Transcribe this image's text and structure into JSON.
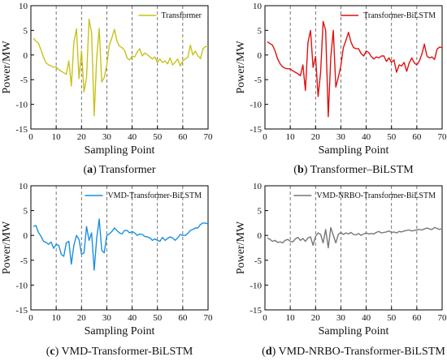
{
  "chart_data": [
    {
      "type": "line",
      "panel": "a",
      "caption_prefix": "(a)",
      "caption_text": "Transformer",
      "xlabel": "Sampling Point",
      "ylabel": "Power/MW",
      "xlim": [
        0,
        70
      ],
      "ylim": [
        -15,
        10
      ],
      "xticks": [
        0,
        10,
        20,
        30,
        40,
        50,
        60,
        70
      ],
      "yticks": [
        -15,
        -10,
        -5,
        0,
        5,
        10
      ],
      "grid": "vertical dashed at x=10..60",
      "legend_position": "top-right",
      "series": [
        {
          "name": "Transformer",
          "color": "#c9c21a",
          "x": [
            1,
            2,
            3,
            4,
            5,
            6,
            7,
            8,
            9,
            10,
            11,
            12,
            13,
            14,
            15,
            16,
            17,
            18,
            19,
            20,
            21,
            22,
            23,
            24,
            25,
            26,
            27,
            28,
            29,
            30,
            31,
            32,
            33,
            34,
            35,
            36,
            37,
            38,
            39,
            40,
            41,
            42,
            43,
            44,
            45,
            46,
            47,
            48,
            49,
            50,
            51,
            52,
            53,
            54,
            55,
            56,
            57,
            58,
            59,
            60,
            61,
            62,
            63,
            64,
            65,
            66,
            67,
            68,
            69,
            70
          ],
          "y": [
            3.4,
            2.8,
            2.4,
            1.0,
            -0.5,
            -1.6,
            -2.0,
            -2.2,
            -2.5,
            -2.4,
            -3.0,
            -3.3,
            -3.6,
            -3.9,
            -1.2,
            -6.3,
            2.6,
            5.3,
            -4.8,
            0.8,
            -7.5,
            -4.5,
            7.3,
            4.5,
            -12.3,
            -0.5,
            5.4,
            -5.5,
            -4.5,
            -2.0,
            2.0,
            3.5,
            5.2,
            2.8,
            1.8,
            1.5,
            1.0,
            -0.6,
            -1.0,
            -0.2,
            -0.4,
            0.6,
            1.3,
            -0.2,
            0.4,
            0.1,
            -0.4,
            -0.8,
            -0.4,
            -1.5,
            -0.8,
            -1.5,
            -1.2,
            -1.8,
            -0.6,
            -2.0,
            -1.5,
            -0.8,
            -2.2,
            -1.2,
            -0.8,
            -0.5,
            2.0,
            0.0,
            0.8,
            -0.2,
            -0.7,
            1.3,
            1.7,
            1.8
          ]
        }
      ]
    },
    {
      "type": "line",
      "panel": "b",
      "caption_prefix": "(b)",
      "caption_text": "Transformer–BiLSTM",
      "xlabel": "Sampling Point",
      "ylabel": "Power/MW",
      "xlim": [
        0,
        70
      ],
      "ylim": [
        -15,
        10
      ],
      "xticks": [
        0,
        10,
        20,
        30,
        40,
        50,
        60,
        70
      ],
      "yticks": [
        -15,
        -10,
        -5,
        0,
        5,
        10
      ],
      "grid": "vertical dashed at x=10..60",
      "legend_position": "top-right",
      "series": [
        {
          "name": "Transformer-BiLSTM",
          "color": "#e01010",
          "x": [
            1,
            2,
            3,
            4,
            5,
            6,
            7,
            8,
            9,
            10,
            11,
            12,
            13,
            14,
            15,
            16,
            17,
            18,
            19,
            20,
            21,
            22,
            23,
            24,
            25,
            26,
            27,
            28,
            29,
            30,
            31,
            32,
            33,
            34,
            35,
            36,
            37,
            38,
            39,
            40,
            41,
            42,
            43,
            44,
            45,
            46,
            47,
            48,
            49,
            50,
            51,
            52,
            53,
            54,
            55,
            56,
            57,
            58,
            59,
            60,
            61,
            62,
            63,
            64,
            65,
            66,
            67,
            68,
            69,
            70
          ],
          "y": [
            2.7,
            2.3,
            2.0,
            0.8,
            -0.8,
            -1.8,
            -2.4,
            -2.7,
            -2.8,
            -2.8,
            -3.2,
            -3.5,
            -3.8,
            -4.2,
            -2.0,
            -7.2,
            2.5,
            5.0,
            -2.5,
            -0.3,
            -8.4,
            -3.5,
            6.8,
            5.0,
            -12.5,
            -0.5,
            5.0,
            -6.5,
            -4.5,
            -2.2,
            1.5,
            3.0,
            4.6,
            2.6,
            1.5,
            1.3,
            1.3,
            0.3,
            -0.2,
            0.8,
            0.5,
            -0.3,
            -0.8,
            -0.4,
            -0.6,
            -0.2,
            -0.2,
            -1.3,
            -0.6,
            -1.5,
            -1.0,
            -3.5,
            -2.0,
            -2.2,
            -1.5,
            -3.3,
            -1.6,
            -0.6,
            -1.6,
            -2.0,
            -1.2,
            0.2,
            2.2,
            -0.2,
            -0.6,
            -0.4,
            -0.9,
            1.2,
            1.6,
            1.5
          ]
        }
      ]
    },
    {
      "type": "line",
      "panel": "c",
      "caption_prefix": "(c)",
      "caption_text": "VMD-Transformer-BiLSTM",
      "xlabel": "Sampling Point",
      "ylabel": "Power/MW",
      "xlim": [
        0,
        70
      ],
      "ylim": [
        -15,
        10
      ],
      "xticks": [
        0,
        10,
        20,
        30,
        40,
        50,
        60,
        70
      ],
      "yticks": [
        -15,
        -10,
        -5,
        0,
        5,
        10
      ],
      "grid": "vertical dashed at x=10..60",
      "legend_position": "top-right",
      "series": [
        {
          "name": "VMD-Transformer-BiLSTM",
          "color": "#1a8fe0",
          "x": [
            1,
            2,
            3,
            4,
            5,
            6,
            7,
            8,
            9,
            10,
            11,
            12,
            13,
            14,
            15,
            16,
            17,
            18,
            19,
            20,
            21,
            22,
            23,
            24,
            25,
            26,
            27,
            28,
            29,
            30,
            31,
            32,
            33,
            34,
            35,
            36,
            37,
            38,
            39,
            40,
            41,
            42,
            43,
            44,
            45,
            46,
            47,
            48,
            49,
            50,
            51,
            52,
            53,
            54,
            55,
            56,
            57,
            58,
            59,
            60,
            61,
            62,
            63,
            64,
            65,
            66,
            67,
            68,
            69,
            70
          ],
          "y": [
            1.8,
            2.0,
            0.6,
            -0.2,
            -1.2,
            -1.4,
            -1.8,
            -1.3,
            -2.6,
            -1.8,
            -2.0,
            -3.8,
            -4.2,
            -1.5,
            -1.2,
            -5.8,
            -2.0,
            0.0,
            -0.8,
            -3.8,
            -3.5,
            1.8,
            -1.0,
            0.5,
            -7.0,
            -0.5,
            3.3,
            -3.0,
            -3.5,
            0.0,
            0.3,
            0.8,
            1.5,
            1.0,
            0.5,
            0.3,
            1.0,
            1.0,
            0.5,
            0.8,
            0.5,
            0.0,
            0.3,
            0.2,
            -0.2,
            -0.3,
            -0.5,
            -1.0,
            -0.7,
            -1.0,
            -1.2,
            -0.4,
            -1.0,
            -0.6,
            -0.3,
            -0.5,
            -1.0,
            -0.5,
            0.2,
            0.0,
            0.0,
            0.4,
            1.0,
            1.2,
            1.5,
            1.5,
            2.2,
            2.5,
            2.5,
            2.3
          ]
        }
      ]
    },
    {
      "type": "line",
      "panel": "d",
      "caption_prefix": "(d)",
      "caption_text": "VMD-NRBO-Transformer-BiLSTM",
      "xlabel": "Sampling Point",
      "ylabel": "Power/MW",
      "xlim": [
        0,
        70
      ],
      "ylim": [
        -15,
        10
      ],
      "xticks": [
        0,
        10,
        20,
        30,
        40,
        50,
        60,
        70
      ],
      "yticks": [
        -15,
        -10,
        -5,
        0,
        5,
        10
      ],
      "grid": "vertical dashed at x=10..60",
      "legend_position": "top-right",
      "series": [
        {
          "name": "VMD-NRBO-Transformer-BiLSTM",
          "color": "#777777",
          "x": [
            1,
            2,
            3,
            4,
            5,
            6,
            7,
            8,
            9,
            10,
            11,
            12,
            13,
            14,
            15,
            16,
            17,
            18,
            19,
            20,
            21,
            22,
            23,
            24,
            25,
            26,
            27,
            28,
            29,
            30,
            31,
            32,
            33,
            34,
            35,
            36,
            37,
            38,
            39,
            40,
            41,
            42,
            43,
            44,
            45,
            46,
            47,
            48,
            49,
            50,
            51,
            52,
            53,
            54,
            55,
            56,
            57,
            58,
            59,
            60,
            61,
            62,
            63,
            64,
            65,
            66,
            67,
            68,
            69,
            70
          ],
          "y": [
            -0.5,
            -0.8,
            -1.2,
            -1.0,
            -1.4,
            -1.3,
            -1.5,
            -1.0,
            -0.8,
            -1.2,
            -1.3,
            -0.7,
            -0.4,
            -1.0,
            -0.6,
            -1.2,
            -0.5,
            -0.3,
            -2.0,
            -0.2,
            0.5,
            0.2,
            -1.5,
            1.2,
            -2.5,
            1.6,
            0.0,
            -1.5,
            0.2,
            0.6,
            0.2,
            0.5,
            0.3,
            0.6,
            0.2,
            0.1,
            0.4,
            0.0,
            0.3,
            0.5,
            0.3,
            0.4,
            0.3,
            0.6,
            0.8,
            0.5,
            0.6,
            0.7,
            0.9,
            0.6,
            0.7,
            0.5,
            0.8,
            0.7,
            0.9,
            1.0,
            1.1,
            0.9,
            1.0,
            1.1,
            1.2,
            1.1,
            1.3,
            1.5,
            1.3,
            1.2,
            1.6,
            1.4,
            1.2,
            1.4
          ]
        }
      ]
    }
  ]
}
